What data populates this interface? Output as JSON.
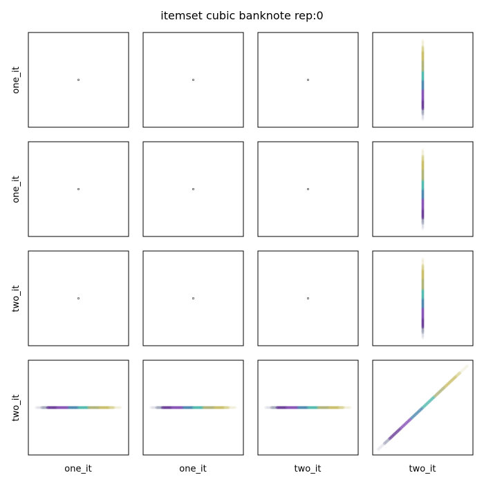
{
  "chart_data": {
    "type": "scatter",
    "title": "itemset cubic banknote rep:0",
    "grid": false,
    "row_labels": [
      "one_it",
      "one_it",
      "two_it",
      "two_it"
    ],
    "col_labels": [
      "one_it",
      "one_it",
      "two_it",
      "two_it"
    ],
    "colors": [
      "#9aa0b4",
      "#5b2a8c",
      "#7a3fae",
      "#3a7ca8",
      "#3fb2a6",
      "#a8ac6a",
      "#c4b85a",
      "#d6cf8a"
    ],
    "panels": [
      {
        "row": 0,
        "col": 0,
        "kind": "point"
      },
      {
        "row": 0,
        "col": 1,
        "kind": "point"
      },
      {
        "row": 0,
        "col": 2,
        "kind": "point"
      },
      {
        "row": 0,
        "col": 3,
        "kind": "vertical"
      },
      {
        "row": 1,
        "col": 0,
        "kind": "point"
      },
      {
        "row": 1,
        "col": 1,
        "kind": "point"
      },
      {
        "row": 1,
        "col": 2,
        "kind": "point"
      },
      {
        "row": 1,
        "col": 3,
        "kind": "vertical"
      },
      {
        "row": 2,
        "col": 0,
        "kind": "point"
      },
      {
        "row": 2,
        "col": 1,
        "kind": "point"
      },
      {
        "row": 2,
        "col": 2,
        "kind": "point"
      },
      {
        "row": 2,
        "col": 3,
        "kind": "vertical"
      },
      {
        "row": 3,
        "col": 0,
        "kind": "horizontal"
      },
      {
        "row": 3,
        "col": 1,
        "kind": "horizontal"
      },
      {
        "row": 3,
        "col": 2,
        "kind": "horizontal"
      },
      {
        "row": 3,
        "col": 3,
        "kind": "diagonal"
      }
    ]
  }
}
